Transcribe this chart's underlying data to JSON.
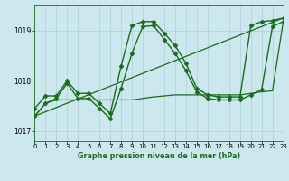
{
  "title": "Graphe pression niveau de la mer (hPa)",
  "bg_color": "#cce8ee",
  "grid_color": "#aacfd8",
  "line_color": "#1a6b1a",
  "xlim": [
    0,
    23
  ],
  "ylim": [
    1016.8,
    1019.5
  ],
  "xticks": [
    0,
    1,
    2,
    3,
    4,
    5,
    6,
    7,
    8,
    9,
    10,
    11,
    12,
    13,
    14,
    15,
    16,
    17,
    18,
    19,
    20,
    21,
    22,
    23
  ],
  "yticks": [
    1017,
    1018,
    1019
  ],
  "series": [
    {
      "x": [
        0,
        1,
        2,
        3,
        4,
        5,
        6,
        7,
        8,
        9,
        10,
        11,
        12,
        13,
        14,
        15,
        16,
        17,
        18,
        19,
        20,
        21,
        22,
        23
      ],
      "y": [
        1017.45,
        1017.7,
        1017.7,
        1018.0,
        1017.75,
        1017.75,
        1017.55,
        1017.35,
        1018.3,
        1019.1,
        1019.18,
        1019.18,
        1018.95,
        1018.7,
        1018.35,
        1017.85,
        1017.72,
        1017.68,
        1017.68,
        1017.68,
        1019.1,
        1019.18,
        1019.2,
        1019.25
      ],
      "marker": "D",
      "markersize": 2.5,
      "linewidth": 1.0
    },
    {
      "x": [
        0,
        1,
        2,
        3,
        4,
        5,
        6,
        7,
        8,
        9,
        10,
        11,
        12,
        13,
        14,
        15,
        16,
        17,
        18,
        19,
        20,
        21,
        22,
        23
      ],
      "y": [
        1017.3,
        1017.55,
        1017.65,
        1017.95,
        1017.65,
        1017.65,
        1017.45,
        1017.25,
        1017.85,
        1018.55,
        1019.08,
        1019.1,
        1018.82,
        1018.55,
        1018.2,
        1017.78,
        1017.65,
        1017.62,
        1017.62,
        1017.62,
        1017.72,
        1017.82,
        1019.08,
        1019.18
      ],
      "marker": "D",
      "markersize": 2.5,
      "linewidth": 1.0
    },
    {
      "x": [
        0,
        1,
        2,
        3,
        4,
        5,
        6,
        7,
        8,
        9,
        10,
        11,
        12,
        13,
        14,
        15,
        16,
        17,
        18,
        19,
        20,
        21,
        22,
        23
      ],
      "y": [
        1017.3,
        1017.55,
        1017.62,
        1017.62,
        1017.62,
        1017.62,
        1017.62,
        1017.62,
        1017.62,
        1017.62,
        1017.65,
        1017.68,
        1017.7,
        1017.72,
        1017.72,
        1017.72,
        1017.72,
        1017.72,
        1017.72,
        1017.72,
        1017.75,
        1017.78,
        1017.8,
        1019.18
      ],
      "marker": null,
      "markersize": 0,
      "linewidth": 0.9
    },
    {
      "x": [
        0,
        23
      ],
      "y": [
        1017.3,
        1019.25
      ],
      "marker": null,
      "markersize": 0,
      "linewidth": 0.9
    }
  ]
}
